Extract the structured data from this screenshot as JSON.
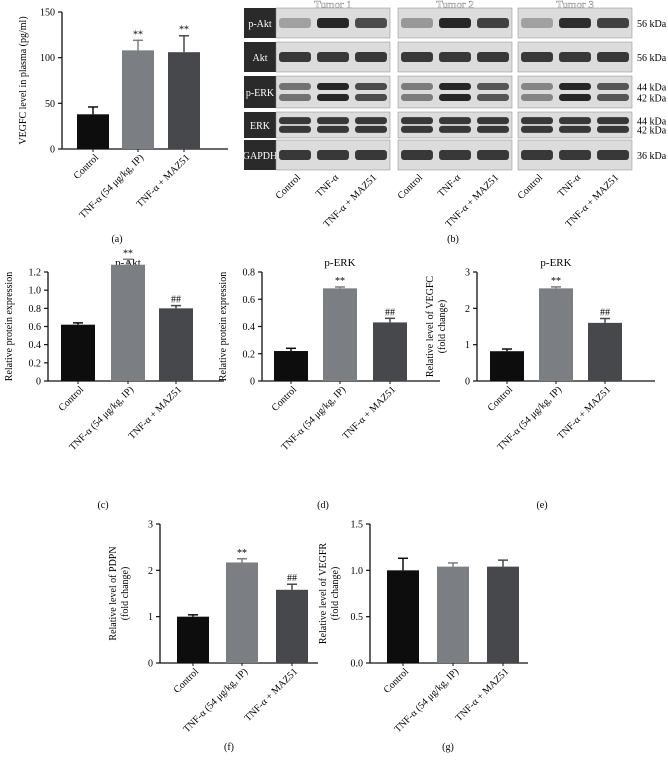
{
  "colors": {
    "control": "#0d0d0d",
    "tnf": "#7b7e82",
    "tnf_maz": "#46484c",
    "axis": "#111111",
    "blot_bg": "#dcdcdc",
    "band": "#1b1b1b"
  },
  "blot": {
    "tumor_labels": [
      "Tumor 1",
      "Tumor 2",
      "Tumor 3"
    ],
    "row_labels": [
      "p-Akt",
      "Akt",
      "p-ERK",
      "ERK",
      "GAPDH"
    ],
    "kda_labels": [
      [
        "56 kDa"
      ],
      [
        "56 kDa"
      ],
      [
        "44 kDa",
        "42 kDa"
      ],
      [
        "44 kDa",
        "42 kDa"
      ],
      [
        "36 kDa"
      ]
    ],
    "lane_labels": [
      "Control",
      "TNF-α",
      "TNF-α + MAZ51"
    ],
    "band_intensity": [
      [
        [
          0.3,
          0.95,
          0.75
        ],
        [
          0.35,
          0.95,
          0.8
        ],
        [
          0.3,
          0.9,
          0.8
        ]
      ],
      [
        [
          0.85,
          0.85,
          0.85
        ],
        [
          0.85,
          0.85,
          0.85
        ],
        [
          0.85,
          0.85,
          0.85
        ]
      ],
      [
        [
          0.55,
          0.95,
          0.75
        ],
        [
          0.5,
          0.95,
          0.7
        ],
        [
          0.45,
          0.95,
          0.7
        ]
      ],
      [
        [
          0.85,
          0.85,
          0.85
        ],
        [
          0.85,
          0.85,
          0.85
        ],
        [
          0.85,
          0.85,
          0.85
        ]
      ],
      [
        [
          0.85,
          0.85,
          0.85
        ],
        [
          0.85,
          0.85,
          0.85
        ],
        [
          0.85,
          0.85,
          0.85
        ]
      ]
    ]
  },
  "panel_letters": [
    "(a)",
    "(b)",
    "(c)",
    "(d)",
    "(e)",
    "(f)",
    "(g)"
  ],
  "chart_data": [
    {
      "id": "a",
      "type": "bar",
      "title": "",
      "ylabel": "VEGFC level in plasma (pg/ml)",
      "categories": [
        "Control",
        "TNF-α (54 μg/kg, IP)",
        "TNF-α + MAZ51"
      ],
      "values": [
        38,
        108,
        106
      ],
      "errors": [
        8,
        11,
        18
      ],
      "annotations": [
        "",
        "**",
        "**"
      ],
      "ylim": [
        0,
        150
      ],
      "yticks": [
        "0",
        "50",
        "100",
        "150"
      ]
    },
    {
      "id": "c",
      "type": "bar",
      "title": "p-Akt",
      "ylabel": "Relative protein expression",
      "categories": [
        "Control",
        "TNF-α (54 μg/kg, IP)",
        "TNF-α + MAZ51"
      ],
      "values": [
        0.62,
        1.28,
        0.8
      ],
      "errors": [
        0.02,
        0.06,
        0.03
      ],
      "annotations": [
        "",
        "**",
        "##"
      ],
      "ylim": [
        0,
        1.2
      ],
      "yticks": [
        "0",
        "0.2",
        "0.4",
        "0.6",
        "0.8",
        "1.0",
        "1.2"
      ]
    },
    {
      "id": "d",
      "type": "bar",
      "title": "p-ERK",
      "ylabel": "Relative protein expression",
      "categories": [
        "Control",
        "TNF-α (54 μg/kg, IP)",
        "TNF-α + MAZ51"
      ],
      "values": [
        0.22,
        0.68,
        0.43
      ],
      "errors": [
        0.02,
        0.01,
        0.03
      ],
      "annotations": [
        "",
        "**",
        "##"
      ],
      "ylim": [
        0,
        0.8
      ],
      "yticks": [
        "0",
        "0.2",
        "0.4",
        "0.6",
        "0.8"
      ]
    },
    {
      "id": "e",
      "type": "bar",
      "title": "p-ERK",
      "ylabel": "Relative level of VEGFC (fold change)",
      "categories": [
        "Control",
        "TNF-α (54 μg/kg, IP)",
        "TNF-α + MAZ51"
      ],
      "values": [
        0.82,
        2.55,
        1.6
      ],
      "errors": [
        0.06,
        0.04,
        0.12
      ],
      "annotations": [
        "",
        "**",
        "##"
      ],
      "ylim": [
        0,
        3
      ],
      "yticks": [
        "0",
        "1",
        "2",
        "3"
      ]
    },
    {
      "id": "f",
      "type": "bar",
      "title": "",
      "ylabel": "Relative level of PDPN (fold change)",
      "categories": [
        "Control",
        "TNF-α (54 μg/kg, IP)",
        "TNF-α + MAZ51"
      ],
      "values": [
        1.0,
        2.17,
        1.58
      ],
      "errors": [
        0.04,
        0.08,
        0.12
      ],
      "annotations": [
        "",
        "**",
        "##"
      ],
      "ylim": [
        0,
        3
      ],
      "yticks": [
        "0",
        "1",
        "2",
        "3"
      ]
    },
    {
      "id": "g",
      "type": "bar",
      "title": "",
      "ylabel": "Relative level of VEGFR (fold change)",
      "categories": [
        "Control",
        "TNF-α (54 μg/kg, IP)",
        "TNF-α + MAZ51"
      ],
      "values": [
        1.0,
        1.04,
        1.04
      ],
      "errors": [
        0.13,
        0.04,
        0.07
      ],
      "annotations": [
        "",
        "",
        ""
      ],
      "ylim": [
        0,
        1.5
      ],
      "yticks": [
        "0.0",
        "0.5",
        "1.0",
        "1.5"
      ]
    }
  ]
}
